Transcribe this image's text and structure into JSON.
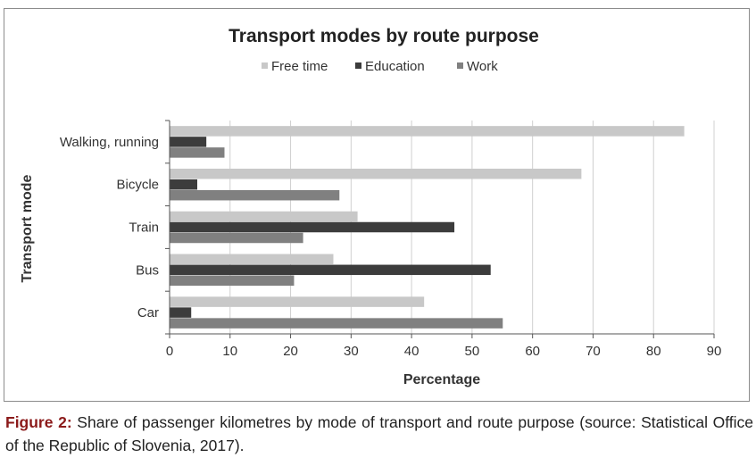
{
  "chart_data": {
    "type": "bar",
    "orientation": "horizontal",
    "title": "Transport modes by route purpose",
    "xlabel": "Percentage",
    "ylabel": "Transport mode",
    "categories": [
      "Walking, running",
      "Bicycle",
      "Train",
      "Bus",
      "Car"
    ],
    "series": [
      {
        "name": "Free time",
        "values": [
          85,
          68,
          31,
          27,
          42
        ],
        "color": "#c8c8c8"
      },
      {
        "name": "Education",
        "values": [
          6,
          4.5,
          47,
          53,
          3.5
        ],
        "color": "#3c3c3c"
      },
      {
        "name": "Work",
        "values": [
          9,
          28,
          22,
          20.5,
          55
        ],
        "color": "#808080"
      }
    ],
    "xlim": [
      0,
      90
    ],
    "xticks": [
      0,
      10,
      20,
      30,
      40,
      50,
      60,
      70,
      80,
      90
    ],
    "grid": true,
    "legend_position": "top"
  },
  "caption": {
    "label": "Figure 2:",
    "text": " Share of passenger kilometres by mode of transport and route purpose (source: Statistical Office of the Republic of Slovenia, 2017)."
  }
}
